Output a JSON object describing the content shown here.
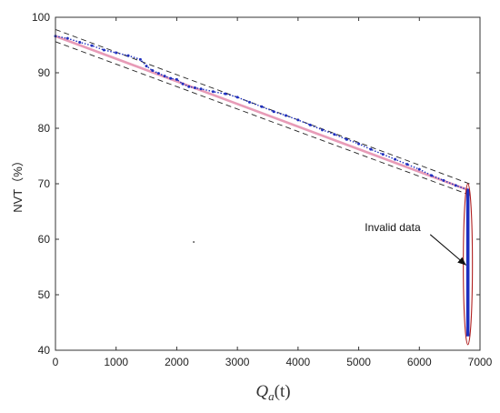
{
  "chart_data": {
    "type": "scatter",
    "title": "",
    "xlabel": "Q_a(t)",
    "xlabel_display": {
      "base": "Q",
      "sub": "a",
      "arg": "(t)"
    },
    "ylabel": "NVT（%）",
    "xlim": [
      0,
      7000
    ],
    "ylim": [
      40,
      100
    ],
    "xticks": [
      0,
      1000,
      2000,
      3000,
      4000,
      5000,
      6000,
      7000
    ],
    "yticks": [
      40,
      50,
      60,
      70,
      80,
      90,
      100
    ],
    "grid": false,
    "legend": "none",
    "colors": {
      "data": "#1f2fbf",
      "fit": "#e07aa0",
      "bounds": "#222222",
      "ellipse": "#b02020"
    },
    "series": [
      {
        "kind": "scatter",
        "x": [
          0,
          200,
          400,
          600,
          800,
          1000,
          1200,
          1400,
          1500,
          1600,
          1700,
          1800,
          1900,
          2000,
          2100,
          2200,
          2300,
          2400,
          2600,
          2800,
          3000,
          3200,
          3400,
          3600,
          3800,
          4000,
          4200,
          4400,
          4600,
          4800,
          5000,
          5200,
          5400,
          5600,
          5800,
          6000,
          6200,
          6400,
          6600,
          6800
        ],
        "y": [
          96.6,
          96.2,
          95.5,
          94.9,
          94.1,
          93.6,
          93.1,
          92.4,
          91.2,
          90.4,
          89.9,
          89.4,
          89.0,
          88.8,
          88.0,
          87.5,
          87.3,
          87.1,
          86.6,
          86.2,
          85.6,
          84.7,
          83.9,
          83.0,
          82.3,
          81.5,
          80.6,
          79.7,
          78.9,
          78.0,
          77.2,
          76.2,
          75.3,
          74.4,
          73.5,
          72.6,
          71.5,
          70.6,
          69.7,
          68.9
        ]
      },
      {
        "kind": "vertical-band",
        "x": 6800,
        "y_range": [
          42.5,
          69
        ]
      }
    ],
    "fit_line": {
      "x": [
        0,
        6800
      ],
      "y": [
        96.6,
        68.9
      ]
    },
    "bounds": [
      {
        "x": [
          0,
          6850
        ],
        "y": [
          97.8,
          69.9
        ]
      },
      {
        "x": [
          0,
          6850
        ],
        "y": [
          95.6,
          67.9
        ]
      }
    ],
    "outlier_point": {
      "x": 2280,
      "y": 59.5
    },
    "annotation": {
      "text": "Invalid data",
      "text_at": [
        5100,
        61.5
      ],
      "arrow_to": [
        6800,
        55.5
      ],
      "ellipse_center": [
        6800,
        55.5
      ],
      "ellipse_radii": [
        75,
        14.5
      ]
    }
  }
}
